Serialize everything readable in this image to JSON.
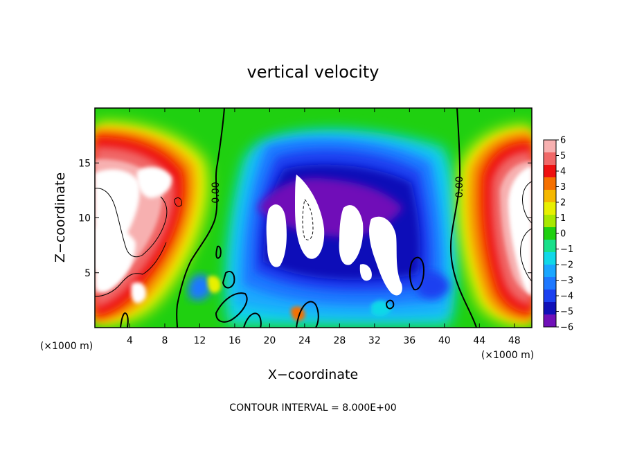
{
  "chart_data": {
    "type": "heatmap",
    "title": "vertical velocity",
    "xlabel": "X−coordinate",
    "ylabel": "Z−coordinate",
    "x_unit_label": "(×1000 m)",
    "z_unit_label": "(×1000 m)",
    "xlim": [
      0,
      50
    ],
    "ylim": [
      0,
      20
    ],
    "x_ticks": [
      4,
      8,
      12,
      16,
      20,
      24,
      28,
      32,
      36,
      40,
      44,
      48
    ],
    "y_ticks": [
      5,
      10,
      15
    ],
    "contour_interval_label": "CONTOUR INTERVAL = 8.000E+00",
    "contour_labels": [
      "0.00",
      "0.00"
    ],
    "colorbar": {
      "vmin": -6,
      "vmax": 6,
      "ticks": [
        6,
        5,
        4,
        3,
        2,
        1,
        0,
        -1,
        -2,
        -3,
        -4,
        -5,
        -6
      ],
      "tick_labels": [
        "6",
        "5",
        "4",
        "3",
        "2",
        "1",
        "0",
        "−1",
        "−2",
        "−3",
        "−4",
        "−5",
        "−6"
      ],
      "colors": [
        "#f7b0b0",
        "#f06868",
        "#ee1010",
        "#f57000",
        "#f5b800",
        "#e8f000",
        "#a8e800",
        "#1fd010",
        "#18e08a",
        "#10d8e8",
        "#1aa6ff",
        "#1e78ff",
        "#1a40f0",
        "#1010b8",
        "#7010b8"
      ]
    },
    "field_summary": {
      "left_updraft_x": [
        0,
        10
      ],
      "left_updraft_peak": "above 6",
      "central_downdraft_x": [
        16,
        40
      ],
      "central_downdraft_peak": "below -6",
      "right_updraft_x": [
        42,
        50
      ],
      "right_updraft_peak": "above 6",
      "zero_contour_x": [
        14,
        41
      ]
    }
  }
}
